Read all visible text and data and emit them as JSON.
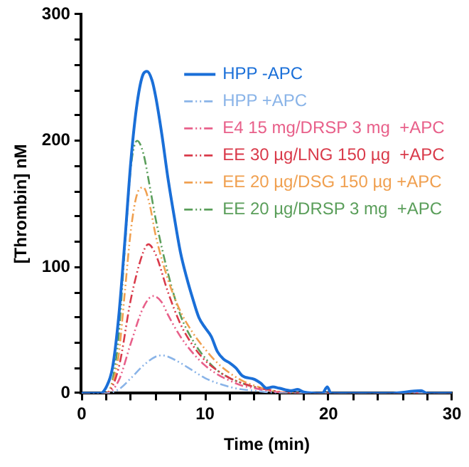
{
  "chart_data": {
    "type": "line",
    "xlabel": "Time (min)",
    "ylabel": "[Thrombin] nM",
    "xlim": [
      0,
      30
    ],
    "xticks": [
      0,
      {
        "value": 2,
        "label": null
      },
      {
        "value": 4,
        "label": null
      },
      {
        "value": 6,
        "label": null
      },
      {
        "value": 8,
        "label": null
      },
      10,
      {
        "value": 12,
        "label": null
      },
      {
        "value": 14,
        "label": null
      },
      {
        "value": 16,
        "label": null
      },
      {
        "value": 18,
        "label": null
      },
      20,
      {
        "value": 22,
        "label": null
      },
      {
        "value": 24,
        "label": null
      },
      {
        "value": 26,
        "label": null
      },
      {
        "value": 28,
        "label": null
      },
      30
    ],
    "ylim": [
      0,
      300
    ],
    "yticks": [
      0,
      {
        "value": 20,
        "label": null
      },
      {
        "value": 40,
        "label": null
      },
      {
        "value": 60,
        "label": null
      },
      {
        "value": 80,
        "label": null
      },
      100,
      {
        "value": 120,
        "label": null
      },
      {
        "value": 140,
        "label": null
      },
      {
        "value": 160,
        "label": null
      },
      {
        "value": 180,
        "label": null
      },
      200,
      {
        "value": 220,
        "label": null
      },
      {
        "value": 240,
        "label": null
      },
      {
        "value": 260,
        "label": null
      },
      {
        "value": 280,
        "label": null
      },
      300
    ],
    "grid": false,
    "legend": "top right",
    "marker": "none",
    "series": [
      {
        "name": "HPP -APC",
        "color": "#1a6fd8",
        "line_style": "solid",
        "x": [
          0,
          1.5,
          2,
          2.5,
          3,
          3.5,
          4,
          4.5,
          5,
          5.3,
          5.7,
          6,
          6.5,
          7,
          7.5,
          8,
          8.5,
          9,
          9.5,
          10,
          10.5,
          11,
          11.5,
          12,
          12.5,
          13,
          14,
          14.5,
          15,
          15.5,
          16,
          17,
          17.5,
          18,
          19.5,
          19.9,
          20.2,
          25,
          27.5,
          28,
          30
        ],
        "values": [
          0,
          0,
          5,
          20,
          60,
          120,
          185,
          230,
          253,
          255,
          248,
          235,
          205,
          170,
          140,
          112,
          92,
          75,
          60,
          52,
          45,
          33,
          27,
          24,
          20,
          14,
          11,
          8,
          4,
          5,
          4,
          2,
          3,
          1,
          0,
          5,
          0,
          0,
          2,
          0,
          0
        ]
      },
      {
        "name": "HPP +APC",
        "color": "#8ab4e8",
        "line_style": "dashed",
        "x": [
          0,
          2,
          3,
          4,
          5,
          6,
          6.5,
          7,
          8,
          9,
          10,
          11,
          12,
          13,
          14,
          16,
          30
        ],
        "values": [
          0,
          0,
          3,
          12,
          22,
          29,
          30,
          29,
          24,
          18,
          12,
          8,
          5,
          3,
          2,
          0,
          0
        ]
      },
      {
        "name": "E4 15 mg/DRSP 3 mg  +APC",
        "color": "#e8608a",
        "line_style": "dashed",
        "x": [
          0,
          2,
          3,
          4,
          5,
          5.8,
          6.5,
          7,
          8,
          9,
          10,
          11,
          12,
          13,
          14,
          15,
          17,
          30
        ],
        "values": [
          0,
          0,
          10,
          40,
          68,
          77,
          72,
          62,
          45,
          32,
          22,
          15,
          10,
          6,
          4,
          2,
          0,
          0
        ]
      },
      {
        "name": "EE 30 µg/LNG 150 µg  +APC",
        "color": "#d93a4a",
        "line_style": "dashed",
        "x": [
          0,
          2,
          3,
          4,
          5,
          5.4,
          6,
          7,
          8,
          9,
          10,
          11,
          12,
          13,
          14,
          15,
          17,
          30
        ],
        "values": [
          0,
          0,
          20,
          75,
          112,
          118,
          110,
          80,
          55,
          38,
          26,
          18,
          12,
          8,
          5,
          3,
          0,
          0
        ]
      },
      {
        "name": "EE 20 µg/DSG 150 µg +APC",
        "color": "#f0a050",
        "line_style": "dashed",
        "x": [
          0,
          2,
          2.5,
          3,
          3.5,
          4,
          4.5,
          5,
          5.5,
          6,
          7,
          8,
          9,
          10,
          11,
          12,
          13,
          14,
          15,
          17,
          30
        ],
        "values": [
          0,
          0,
          8,
          30,
          80,
          130,
          158,
          163,
          150,
          125,
          90,
          65,
          48,
          35,
          24,
          16,
          10,
          6,
          3,
          0,
          0
        ]
      },
      {
        "name": "EE 20 µg/DRSP 3 mg  +APC",
        "color": "#5a9e5a",
        "line_style": "dashed",
        "x": [
          0,
          2,
          2.5,
          3,
          3.5,
          4,
          4.5,
          5,
          5.5,
          6,
          7,
          8,
          9,
          10,
          11,
          12,
          13,
          14,
          15,
          17,
          30
        ],
        "values": [
          0,
          0,
          10,
          45,
          115,
          180,
          200,
          190,
          165,
          138,
          95,
          62,
          42,
          28,
          18,
          12,
          8,
          5,
          3,
          0,
          0
        ]
      }
    ]
  }
}
